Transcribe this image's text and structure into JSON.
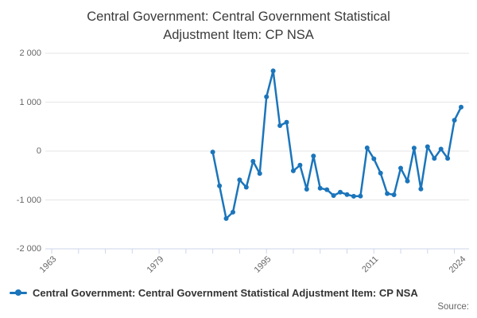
{
  "title": {
    "line1": "Central Government: Central Government Statistical",
    "line2": "Adjustment Item: CP NSA"
  },
  "legend": {
    "label": "Central Government: Central Government Statistical Adjustment Item: CP NSA"
  },
  "source": {
    "label": "Source:"
  },
  "colors": {
    "line": "#1b75bb",
    "grid": "#e6e6e6",
    "axis": "#ccd6eb",
    "tick_label": "#666666",
    "title_text": "#3a3a3a",
    "legend_text": "#333333"
  },
  "chart_data": {
    "type": "line",
    "title": "Central Government: Central Government Statistical Adjustment Item: CP NSA",
    "series_name": "Central Government: Central Government Statistical Adjustment Item: CP NSA",
    "xlabel": "",
    "ylabel": "",
    "x": [
      1987,
      1988,
      1989,
      1990,
      1991,
      1992,
      1993,
      1994,
      1995,
      1996,
      1997,
      1998,
      1999,
      2000,
      2001,
      2002,
      2003,
      2004,
      2005,
      2006,
      2007,
      2008,
      2009,
      2010,
      2011,
      2012,
      2013,
      2014,
      2015,
      2016,
      2017,
      2018,
      2019,
      2020,
      2021,
      2022,
      2023,
      2024
    ],
    "values": [
      -20,
      -710,
      -1380,
      -1250,
      -590,
      -740,
      -210,
      -460,
      1110,
      1640,
      520,
      590,
      -405,
      -290,
      -780,
      -100,
      -760,
      -790,
      -910,
      -840,
      -890,
      -925,
      -920,
      65,
      -160,
      -450,
      -870,
      -895,
      -350,
      -615,
      60,
      -775,
      90,
      -150,
      40,
      -150,
      630,
      900
    ],
    "xlim": [
      1962,
      2025
    ],
    "ylim": [
      -2000,
      2000
    ],
    "yticks": [
      2000,
      1000,
      0,
      -1000,
      -2000
    ],
    "ytick_labels": [
      "2 000",
      "1 000",
      "0",
      "-1 000",
      "-2 000"
    ],
    "xticks_minor": [
      1963,
      1967,
      1971,
      1975,
      1979,
      1983,
      1987,
      1991,
      1995,
      1999,
      2003,
      2007,
      2011,
      2015,
      2019,
      2023
    ],
    "xtick_labels": [
      "1963",
      "1979",
      "1995",
      "2011",
      "2024"
    ],
    "xtick_label_years": [
      1963,
      1979,
      1995,
      2011,
      2024
    ],
    "grid": "horizontal",
    "legend_position": "bottom-left"
  }
}
